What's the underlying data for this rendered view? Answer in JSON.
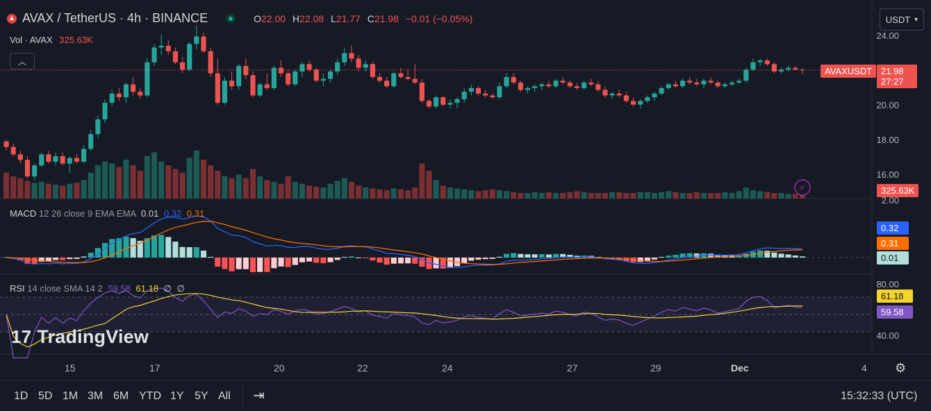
{
  "header": {
    "symbol_title": "AVAX / TetherUS · 4h · BINANCE",
    "ohlc": {
      "o_label": "O",
      "o": "22.00",
      "h_label": "H",
      "h": "22.08",
      "l_label": "L",
      "l": "21.77",
      "c_label": "C",
      "c": "21.98",
      "change": "−0.01 (−0.05%)"
    }
  },
  "volume_legend": {
    "label": "Vol · AVAX",
    "value": "325.63K"
  },
  "currency_button": {
    "label": "USDT",
    "icon": "chevron-down-icon"
  },
  "price_axis": {
    "ticks": [
      "24.00",
      "20.00",
      "18.00",
      "16.00"
    ],
    "partial_tick": "2.00"
  },
  "price_tags": {
    "symbol": "AVAXUSDT",
    "price": "21.98",
    "countdown": "27:27",
    "volume": "325.63K"
  },
  "macd": {
    "label": "MACD",
    "params": "12 26 close 9 EMA EMA",
    "v1": "0.01",
    "v2": "0.32",
    "v3": "0.31",
    "tags": [
      "0.32",
      "0.31",
      "0.01"
    ]
  },
  "rsi": {
    "label": "RSI",
    "params": "14 close SMA 14 2",
    "v1": "59.58",
    "v2": "61.18",
    "v3": "∅",
    "v4": "∅",
    "ticks": [
      "80.00",
      "40.00"
    ],
    "tags": [
      "61.18",
      "59.58"
    ]
  },
  "logo_text": "TradingView",
  "date_axis": [
    "15",
    "17",
    "20",
    "22",
    "24",
    "27",
    "29",
    "Dec",
    "4"
  ],
  "timeframes": [
    "1D",
    "5D",
    "1M",
    "3M",
    "6M",
    "YTD",
    "1Y",
    "5Y",
    "All"
  ],
  "clock": "15:32:33 (UTC)",
  "colors": {
    "bg": "#161a25",
    "up": "#26a69a",
    "down": "#ef5350",
    "macd": "#2962ff",
    "signal": "#ff6d00",
    "rsi": "#7e57c2",
    "rsi_ma": "#f5d52d"
  },
  "chart_data": {
    "type": "candlestick",
    "ylim": [
      15,
      24.5
    ],
    "candles": [
      [
        18.1,
        18.2,
        17.6,
        17.8
      ],
      [
        17.8,
        18.0,
        17.3,
        17.4
      ],
      [
        17.4,
        17.6,
        16.9,
        17.1
      ],
      [
        17.1,
        17.3,
        16.1,
        16.2
      ],
      [
        16.2,
        16.9,
        16.0,
        16.8
      ],
      [
        16.8,
        17.5,
        16.7,
        17.4
      ],
      [
        17.4,
        17.6,
        16.9,
        17.0
      ],
      [
        17.0,
        17.5,
        16.8,
        17.3
      ],
      [
        17.3,
        17.5,
        16.8,
        16.9
      ],
      [
        16.9,
        17.3,
        16.4,
        17.2
      ],
      [
        17.2,
        17.4,
        16.9,
        17.0
      ],
      [
        17.0,
        17.9,
        16.9,
        17.7
      ],
      [
        17.7,
        18.7,
        17.6,
        18.5
      ],
      [
        18.5,
        19.5,
        18.3,
        19.3
      ],
      [
        19.3,
        20.4,
        19.1,
        20.2
      ],
      [
        20.2,
        20.9,
        20.0,
        20.7
      ],
      [
        20.7,
        21.0,
        20.3,
        20.5
      ],
      [
        20.5,
        21.3,
        20.2,
        21.2
      ],
      [
        21.2,
        21.6,
        20.6,
        20.8
      ],
      [
        20.8,
        21.0,
        20.4,
        20.6
      ],
      [
        20.6,
        22.6,
        20.5,
        22.4
      ],
      [
        22.4,
        23.4,
        22.2,
        23.2
      ],
      [
        23.2,
        23.9,
        22.8,
        23.3
      ],
      [
        23.3,
        23.6,
        22.8,
        23.0
      ],
      [
        23.0,
        23.2,
        22.3,
        22.4
      ],
      [
        22.4,
        22.7,
        21.8,
        22.0
      ],
      [
        22.0,
        23.5,
        21.9,
        23.4
      ],
      [
        23.4,
        24.4,
        23.1,
        23.8
      ],
      [
        23.8,
        24.0,
        22.9,
        23.0
      ],
      [
        23.0,
        23.2,
        21.6,
        21.8
      ],
      [
        21.8,
        22.6,
        20.1,
        20.2
      ],
      [
        20.2,
        21.6,
        20.1,
        21.4
      ],
      [
        21.4,
        21.9,
        20.9,
        21.1
      ],
      [
        21.1,
        22.3,
        20.9,
        22.2
      ],
      [
        22.2,
        22.6,
        21.5,
        21.7
      ],
      [
        21.7,
        21.9,
        20.5,
        20.6
      ],
      [
        20.6,
        21.3,
        20.5,
        21.2
      ],
      [
        21.2,
        21.8,
        20.9,
        21.0
      ],
      [
        21.0,
        22.2,
        20.9,
        22.1
      ],
      [
        22.1,
        22.5,
        21.6,
        21.8
      ],
      [
        21.8,
        22.0,
        21.1,
        21.2
      ],
      [
        21.2,
        22.0,
        21.1,
        21.9
      ],
      [
        21.9,
        22.4,
        21.6,
        22.3
      ],
      [
        22.3,
        22.5,
        21.9,
        22.0
      ],
      [
        22.0,
        22.1,
        21.3,
        21.4
      ],
      [
        21.4,
        21.8,
        21.1,
        21.5
      ],
      [
        21.5,
        22.0,
        21.3,
        21.9
      ],
      [
        21.9,
        22.6,
        21.7,
        22.4
      ],
      [
        22.4,
        23.2,
        22.2,
        22.9
      ],
      [
        22.9,
        23.3,
        22.4,
        22.6
      ],
      [
        22.6,
        22.8,
        21.9,
        22.1
      ],
      [
        22.1,
        22.5,
        21.9,
        22.3
      ],
      [
        22.3,
        22.4,
        21.5,
        21.6
      ],
      [
        21.6,
        21.8,
        21.3,
        21.4
      ],
      [
        21.4,
        21.6,
        21.0,
        21.1
      ],
      [
        21.1,
        21.9,
        21.0,
        21.8
      ],
      [
        21.8,
        22.1,
        21.5,
        21.6
      ],
      [
        21.6,
        22.0,
        21.4,
        21.5
      ],
      [
        21.5,
        22.3,
        21.2,
        21.3
      ],
      [
        21.3,
        21.5,
        20.2,
        20.3
      ],
      [
        20.3,
        20.4,
        19.9,
        20.0
      ],
      [
        20.0,
        20.6,
        19.9,
        20.5
      ],
      [
        20.5,
        20.6,
        20.0,
        20.1
      ],
      [
        20.1,
        20.4,
        19.9,
        20.2
      ],
      [
        20.2,
        20.5,
        19.9,
        20.4
      ],
      [
        20.4,
        21.0,
        20.2,
        20.8
      ],
      [
        20.8,
        21.2,
        20.6,
        21.0
      ],
      [
        21.0,
        21.1,
        20.6,
        20.7
      ],
      [
        20.7,
        20.9,
        20.5,
        20.6
      ],
      [
        20.6,
        20.7,
        20.4,
        20.5
      ],
      [
        20.5,
        21.3,
        20.4,
        21.1
      ],
      [
        21.1,
        21.8,
        21.0,
        21.6
      ],
      [
        21.6,
        21.8,
        21.2,
        21.3
      ],
      [
        21.3,
        21.4,
        20.8,
        20.9
      ],
      [
        20.9,
        21.1,
        20.7,
        21.0
      ],
      [
        21.0,
        21.2,
        20.8,
        21.1
      ],
      [
        21.1,
        21.3,
        20.9,
        21.2
      ],
      [
        21.2,
        21.4,
        21.0,
        21.1
      ],
      [
        21.1,
        21.5,
        21.0,
        21.4
      ],
      [
        21.4,
        21.6,
        21.2,
        21.3
      ],
      [
        21.3,
        21.4,
        21.0,
        21.1
      ],
      [
        21.1,
        21.3,
        20.9,
        21.0
      ],
      [
        21.0,
        21.4,
        20.9,
        21.3
      ],
      [
        21.3,
        21.5,
        21.1,
        21.2
      ],
      [
        21.2,
        21.4,
        20.8,
        20.9
      ],
      [
        20.9,
        21.1,
        20.5,
        20.6
      ],
      [
        20.6,
        20.8,
        20.4,
        20.7
      ],
      [
        20.7,
        20.9,
        20.5,
        20.6
      ],
      [
        20.6,
        20.8,
        20.2,
        20.3
      ],
      [
        20.3,
        20.5,
        20.0,
        20.1
      ],
      [
        20.1,
        20.4,
        19.9,
        20.3
      ],
      [
        20.3,
        20.6,
        20.2,
        20.5
      ],
      [
        20.5,
        20.8,
        20.3,
        20.7
      ],
      [
        20.7,
        21.1,
        20.6,
        21.0
      ],
      [
        21.0,
        21.3,
        20.9,
        21.2
      ],
      [
        21.2,
        21.4,
        21.0,
        21.1
      ],
      [
        21.1,
        21.5,
        21.0,
        21.4
      ],
      [
        21.4,
        21.6,
        21.2,
        21.3
      ],
      [
        21.3,
        21.5,
        21.1,
        21.2
      ],
      [
        21.2,
        21.5,
        21.0,
        21.4
      ],
      [
        21.4,
        21.6,
        21.2,
        21.3
      ],
      [
        21.3,
        21.4,
        21.0,
        21.1
      ],
      [
        21.1,
        21.3,
        21.0,
        21.2
      ],
      [
        21.2,
        21.4,
        21.1,
        21.3
      ],
      [
        21.3,
        21.5,
        21.2,
        21.4
      ],
      [
        21.4,
        22.1,
        21.3,
        22.0
      ],
      [
        22.0,
        22.6,
        21.9,
        22.4
      ],
      [
        22.4,
        22.6,
        22.2,
        22.5
      ],
      [
        22.5,
        22.6,
        22.2,
        22.3
      ],
      [
        22.3,
        22.4,
        21.8,
        21.9
      ],
      [
        21.9,
        22.1,
        21.8,
        22.0
      ],
      [
        22.0,
        22.2,
        21.9,
        22.1
      ],
      [
        22.1,
        22.2,
        22.0,
        22.0
      ],
      [
        22.0,
        22.08,
        21.77,
        21.98
      ]
    ],
    "volume": [
      140,
      120,
      110,
      95,
      85,
      90,
      80,
      75,
      70,
      80,
      85,
      100,
      140,
      180,
      200,
      190,
      170,
      210,
      180,
      150,
      230,
      250,
      200,
      180,
      160,
      140,
      220,
      260,
      210,
      180,
      150,
      120,
      110,
      130,
      110,
      160,
      120,
      100,
      90,
      80,
      120,
      90,
      80,
      70,
      65,
      60,
      80,
      95,
      110,
      90,
      70,
      60,
      55,
      50,
      45,
      55,
      50,
      45,
      60,
      190,
      150,
      100,
      70,
      60,
      55,
      50,
      45,
      40,
      45,
      50,
      45,
      40,
      35,
      30,
      30,
      35,
      30,
      35,
      30,
      30,
      35,
      40,
      35,
      30,
      30,
      30,
      35,
      35,
      30,
      30,
      35,
      35,
      30,
      35,
      40,
      35,
      30,
      30,
      35,
      30,
      30,
      30,
      35,
      30,
      40,
      60,
      45,
      40,
      35,
      30,
      30,
      25,
      25,
      20
    ],
    "volume_ylim": [
      0,
      300
    ],
    "price_scale_label": "USDT"
  }
}
